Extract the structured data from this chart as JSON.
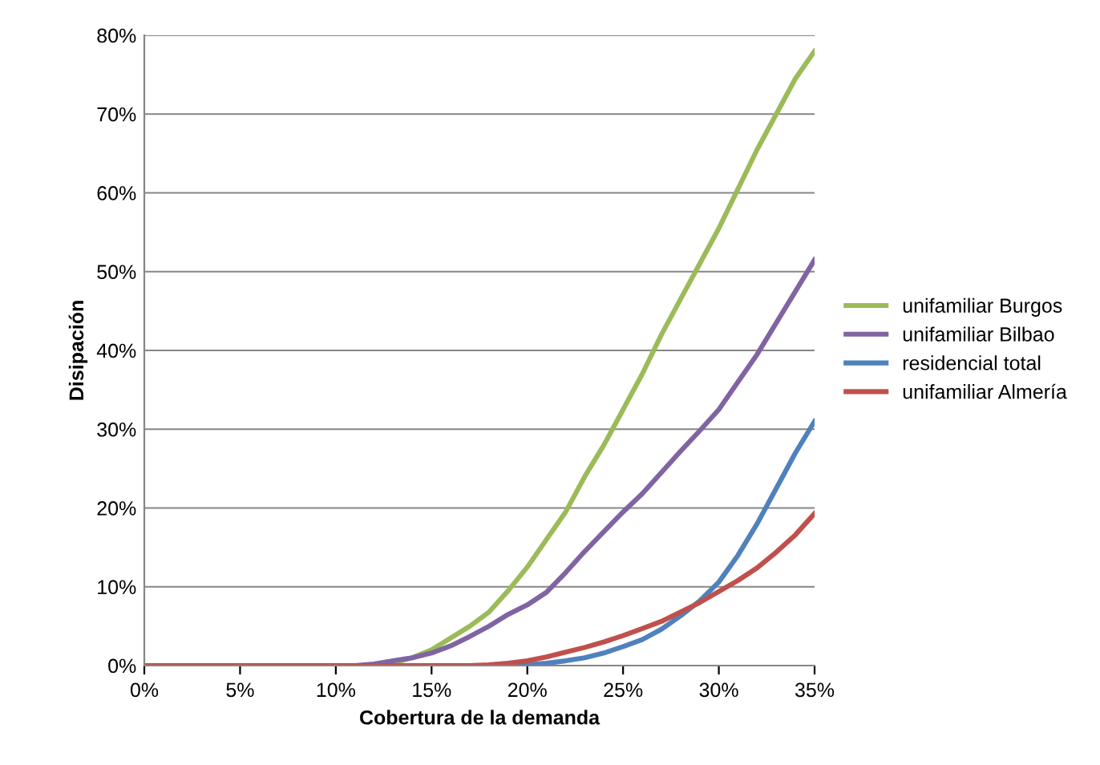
{
  "chart_data": {
    "type": "line",
    "xlabel": "Cobertura de la demanda",
    "ylabel": "Disipación",
    "x": [
      0,
      5,
      10,
      11,
      12,
      13,
      14,
      15,
      16,
      17,
      18,
      19,
      20,
      21,
      22,
      23,
      24,
      25,
      26,
      27,
      28,
      29,
      30,
      31,
      32,
      33,
      34,
      35
    ],
    "series": [
      {
        "name": "unifamiliar Burgos",
        "color": "#9bbb59",
        "values": [
          null,
          null,
          null,
          null,
          0,
          0.3,
          1,
          2,
          3.5,
          5,
          6.8,
          9.5,
          12.5,
          16,
          19.5,
          24,
          28,
          32.5,
          37,
          42,
          46.5,
          51,
          55.5,
          60.5,
          65.5,
          70,
          74.5,
          78
        ]
      },
      {
        "name": "unifamiliar Bilbao",
        "color": "#8064a2",
        "values": [
          0,
          0,
          0,
          0,
          0.2,
          0.6,
          1,
          1.6,
          2.5,
          3.7,
          5,
          6.5,
          7.7,
          9.3,
          11.8,
          14.5,
          17,
          19.5,
          21.8,
          24.5,
          27.2,
          29.8,
          32.5,
          36,
          39.5,
          43.5,
          47.5,
          51.5
        ]
      },
      {
        "name": "residencial total",
        "color": "#4f81bd",
        "values": [
          null,
          null,
          0,
          0,
          0,
          0,
          0,
          0,
          0,
          0,
          0,
          0,
          0.1,
          0.3,
          0.6,
          1,
          1.6,
          2.4,
          3.3,
          4.6,
          6.3,
          8.2,
          10.6,
          14,
          18,
          22.5,
          27,
          31
        ]
      },
      {
        "name": "unifamiliar Almería",
        "color": "#c0504d",
        "values": [
          0,
          0,
          0,
          0,
          0,
          0,
          0,
          0,
          0,
          0,
          0.1,
          0.3,
          0.6,
          1.1,
          1.7,
          2.3,
          3,
          3.8,
          4.7,
          5.6,
          6.8,
          8,
          9.4,
          10.8,
          12.4,
          14.4,
          16.6,
          19.3
        ]
      }
    ],
    "xlim": [
      0,
      35
    ],
    "ylim": [
      0,
      80
    ],
    "xticks": [
      {
        "value": 0,
        "label": "0%"
      },
      {
        "value": 5,
        "label": "5%"
      },
      {
        "value": 10,
        "label": "10%"
      },
      {
        "value": 15,
        "label": "15%"
      },
      {
        "value": 20,
        "label": "20%"
      },
      {
        "value": 25,
        "label": "25%"
      },
      {
        "value": 30,
        "label": "30%"
      },
      {
        "value": 35,
        "label": "35%"
      }
    ],
    "yticks": [
      {
        "value": 0,
        "label": "0%"
      },
      {
        "value": 10,
        "label": "10%"
      },
      {
        "value": 20,
        "label": "20%"
      },
      {
        "value": 30,
        "label": "30%"
      },
      {
        "value": 40,
        "label": "40%"
      },
      {
        "value": 50,
        "label": "50%"
      },
      {
        "value": 60,
        "label": "60%"
      },
      {
        "value": 70,
        "label": "70%"
      },
      {
        "value": 80,
        "label": "80%"
      }
    ],
    "grid": "y",
    "legend": "right",
    "marker": "none",
    "line_style": "solid"
  }
}
